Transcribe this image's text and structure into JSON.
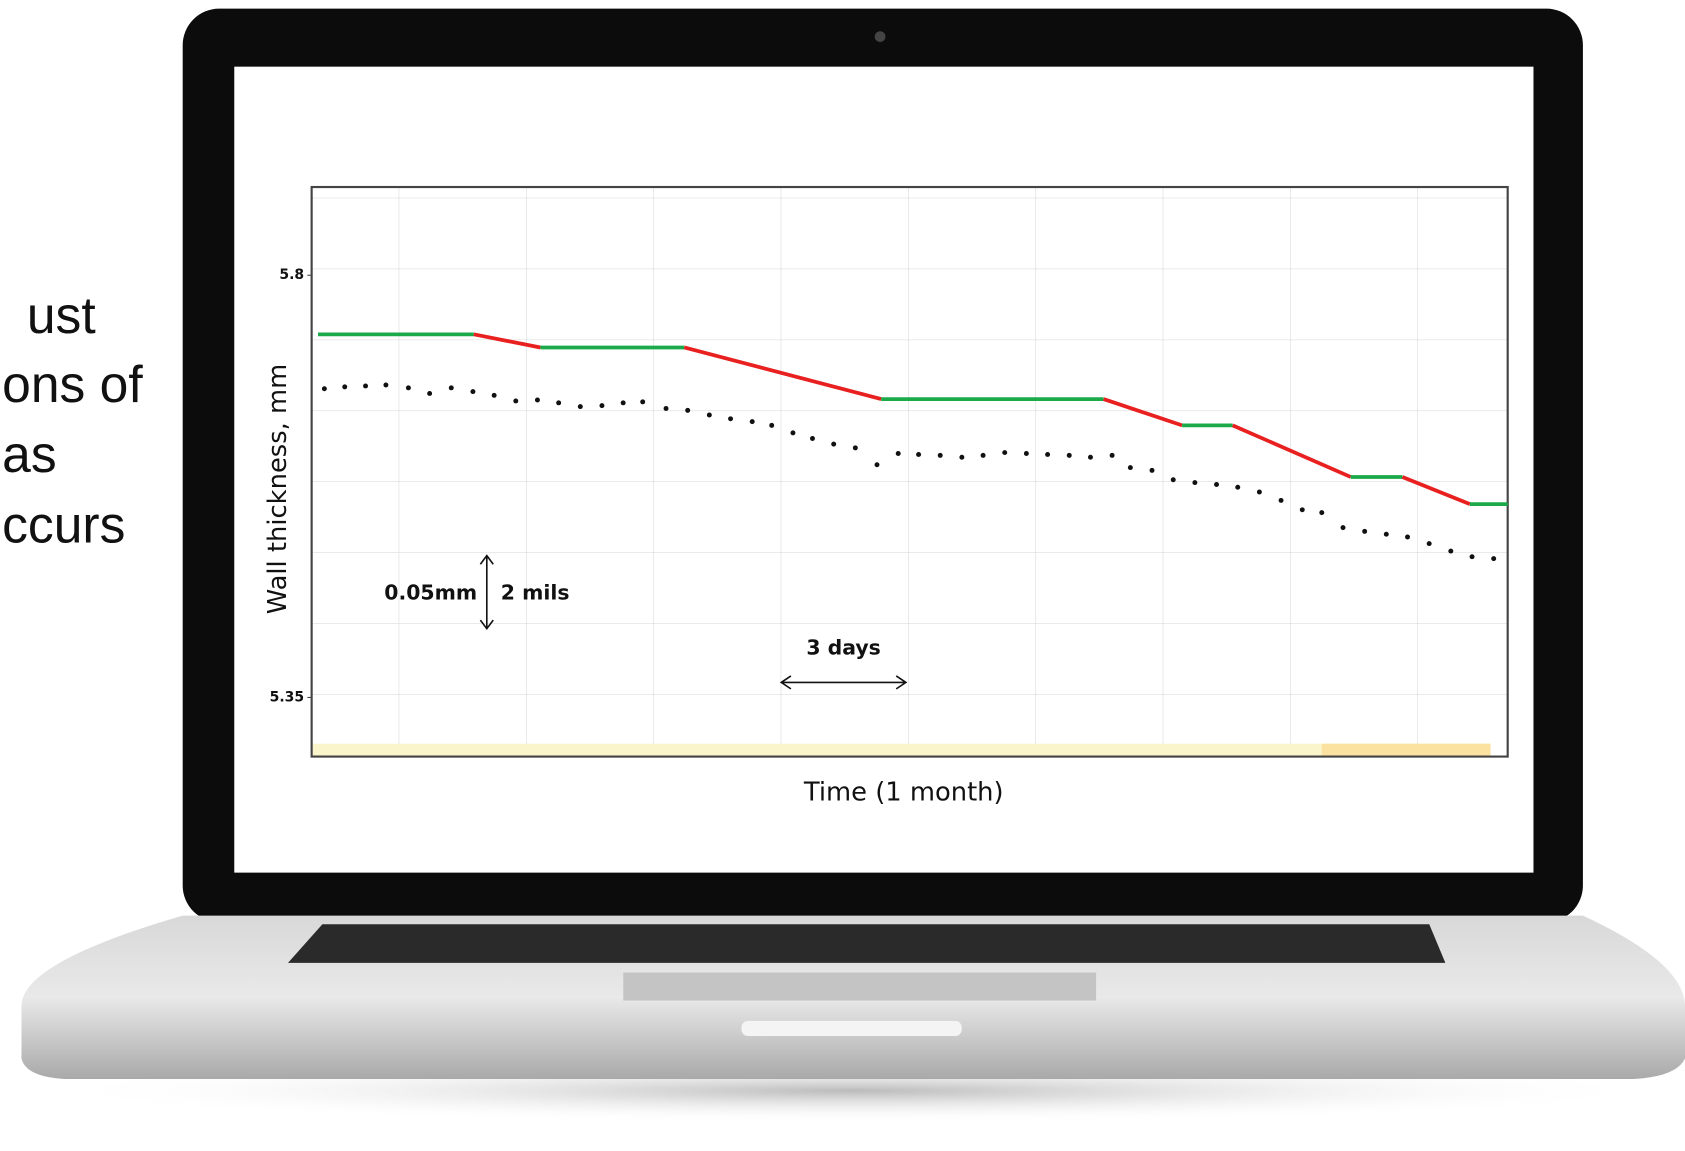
{
  "side_text": [
    "ust",
    "ons of",
    "as",
    "ccurs"
  ],
  "chart_data": {
    "type": "line",
    "y_label": "Wall thickness, mm",
    "x_label": "Time (1 month)",
    "annotations": [
      "0.05mm",
      "2 mils",
      "3 days"
    ],
    "xlim": [
      0,
      28.18
    ],
    "ylim": [
      5.287,
      5.894
    ],
    "yticks": [
      5.35,
      5.8
    ],
    "series": [
      {
        "x": [
          0.15,
          3.82,
          5.39,
          8.78,
          13.42,
          18.66,
          20.51,
          21.7,
          24.48,
          25.7,
          27.29,
          28.18
        ],
        "values": [
          5.737,
          5.737,
          5.723,
          5.723,
          5.668,
          5.668,
          5.64,
          5.64,
          5.585,
          5.585,
          5.556,
          5.556
        ],
        "segment_colors": [
          "#1aaa4a",
          "#e82020",
          "#1aaa4a",
          "#e82020",
          "#1aaa4a",
          "#e82020",
          "#1aaa4a",
          "#e82020",
          "#1aaa4a",
          "#e82020",
          "#1aaa4a"
        ]
      },
      {
        "color": "#111111",
        "x": [
          0.3,
          0.78,
          1.27,
          1.75,
          2.28,
          2.78,
          3.29,
          3.8,
          4.3,
          4.81,
          5.32,
          5.82,
          6.33,
          6.84,
          7.34,
          7.8,
          8.35,
          8.86,
          9.37,
          9.87,
          10.38,
          10.84,
          11.34,
          11.8,
          12.3,
          12.81,
          13.32,
          13.82,
          14.3,
          14.81,
          15.32,
          15.82,
          16.33,
          16.84,
          17.34,
          17.85,
          18.35,
          18.86,
          19.29,
          19.8,
          20.3,
          20.81,
          21.32,
          21.82,
          22.33,
          22.84,
          23.34,
          23.8,
          24.3,
          24.81,
          25.32,
          25.82,
          26.33,
          26.84,
          27.34,
          27.85
        ],
        "values": [
          5.679,
          5.681,
          5.682,
          5.683,
          5.68,
          5.674,
          5.68,
          5.676,
          5.672,
          5.666,
          5.667,
          5.664,
          5.66,
          5.661,
          5.664,
          5.665,
          5.658,
          5.656,
          5.651,
          5.647,
          5.644,
          5.64,
          5.632,
          5.626,
          5.62,
          5.616,
          5.598,
          5.61,
          5.609,
          5.608,
          5.606,
          5.608,
          5.611,
          5.61,
          5.609,
          5.608,
          5.606,
          5.608,
          5.595,
          5.592,
          5.582,
          5.579,
          5.577,
          5.574,
          5.569,
          5.56,
          5.55,
          5.547,
          5.531,
          5.527,
          5.524,
          5.521,
          5.514,
          5.506,
          5.5,
          5.498
        ]
      }
    ]
  }
}
